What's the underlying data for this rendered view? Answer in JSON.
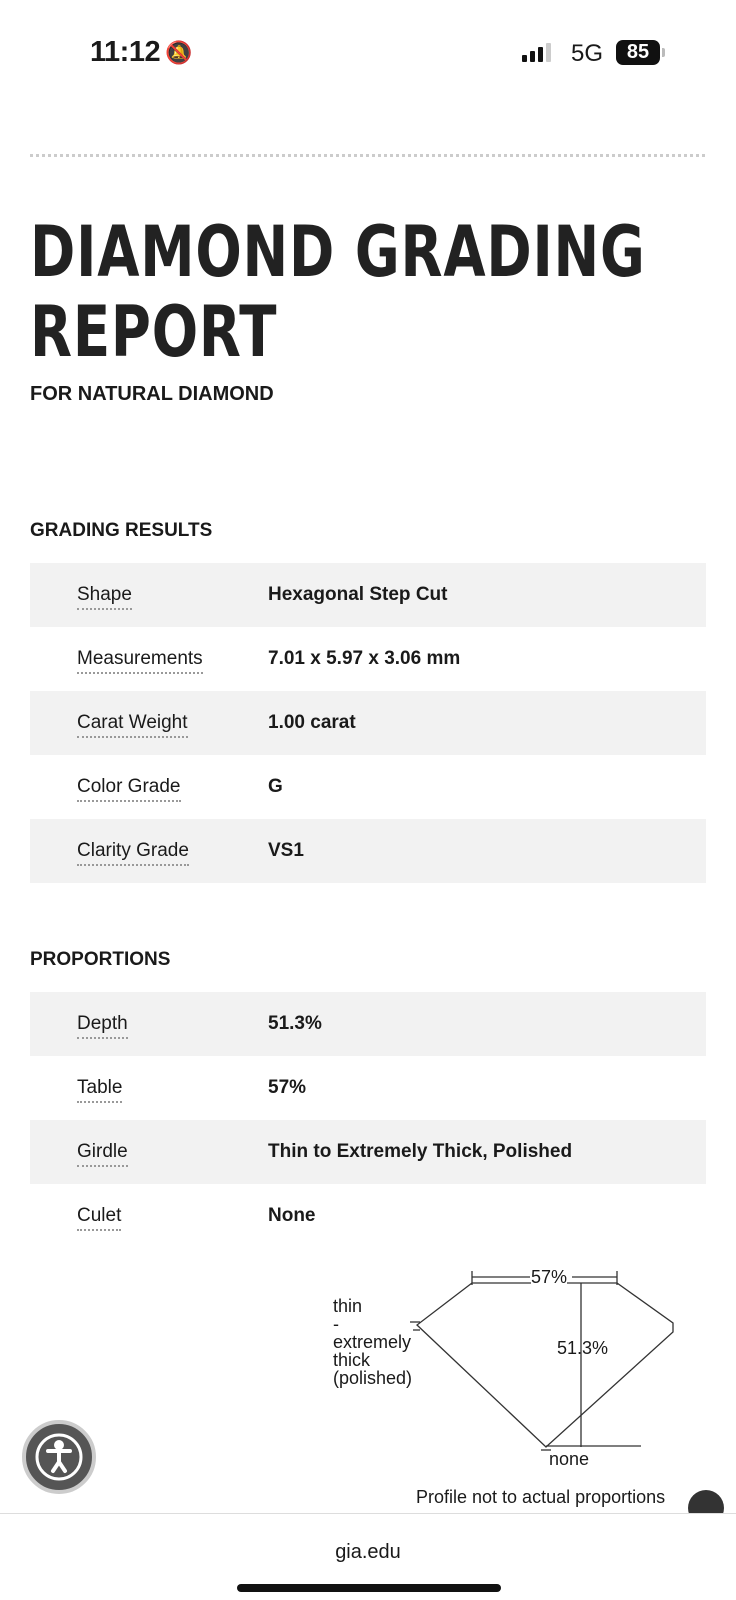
{
  "status_bar": {
    "time": "11:12",
    "network": "5G",
    "battery": "85",
    "icons": [
      "bell-slash-icon",
      "signal-icon",
      "battery-icon"
    ]
  },
  "header": {
    "title": "DIAMOND GRADING REPORT",
    "subtitle": "FOR NATURAL DIAMOND"
  },
  "grading_results": {
    "heading": "GRADING RESULTS",
    "rows": [
      {
        "label": "Shape",
        "value": "Hexagonal Step Cut"
      },
      {
        "label": "Measurements",
        "value": "7.01 x 5.97 x 3.06 mm"
      },
      {
        "label": "Carat Weight",
        "value": "1.00 carat"
      },
      {
        "label": "Color Grade",
        "value": "G"
      },
      {
        "label": "Clarity Grade",
        "value": "VS1"
      }
    ]
  },
  "proportions": {
    "heading": "PROPORTIONS",
    "rows": [
      {
        "label": "Depth",
        "value": "51.3%"
      },
      {
        "label": "Table",
        "value": "57%"
      },
      {
        "label": "Girdle",
        "value": "Thin to Extremely Thick, Polished"
      },
      {
        "label": "Culet",
        "value": "None"
      }
    ]
  },
  "diagram": {
    "table": "57%",
    "depth": "51.3%",
    "girdle": [
      "thin",
      "-",
      "extremely",
      "thick",
      "(polished)"
    ],
    "culet": "none",
    "note": "Profile not to actual proportions"
  },
  "footer": {
    "url": "gia.edu"
  }
}
